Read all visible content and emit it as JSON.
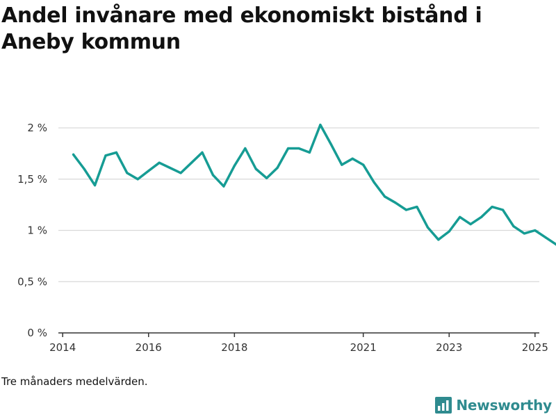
{
  "colors": {
    "line": "#169c94",
    "grid": "#d9d9d9",
    "axis": "#333333",
    "brand": "#2f8b8f"
  },
  "brand": {
    "name": "Newsworthy",
    "logo_icon": "newsworthy-logo-icon"
  },
  "chart_data": {
    "type": "line",
    "title": "Andel invånare med ekonomiskt bistånd i Aneby kommun",
    "note": "Tre månaders medelvärden.",
    "xlabel": "",
    "ylabel": "",
    "xlim": [
      2013.9,
      2025.1
    ],
    "ylim": [
      0,
      2.0
    ],
    "grid": true,
    "x_ticks": [
      {
        "value": 2014,
        "label": "2014"
      },
      {
        "value": 2016,
        "label": "2016"
      },
      {
        "value": 2018,
        "label": "2018"
      },
      {
        "value": 2021,
        "label": "2021"
      },
      {
        "value": 2023,
        "label": "2023"
      },
      {
        "value": 2025,
        "label": "2025"
      }
    ],
    "y_ticks": [
      {
        "value": 0,
        "label": "0 %"
      },
      {
        "value": 0.5,
        "label": "0,5 %"
      },
      {
        "value": 1.0,
        "label": "1 %"
      },
      {
        "value": 1.5,
        "label": "1,5 %"
      },
      {
        "value": 2.0,
        "label": "2 %"
      }
    ],
    "series": [
      {
        "name": "Andel invånare med ekonomiskt bistånd",
        "x": [
          2014.25,
          2014.5,
          2014.75,
          2015.0,
          2015.25,
          2015.5,
          2015.75,
          2016.0,
          2016.25,
          2016.5,
          2016.75,
          2017.0,
          2017.25,
          2017.5,
          2017.75,
          2018.0,
          2018.25,
          2018.5,
          2018.75,
          2019.0,
          2019.25,
          2019.5,
          2019.75,
          2020.0,
          2020.25,
          2020.5,
          2020.75,
          2021.0,
          2021.25,
          2021.5,
          2021.75,
          2022.0,
          2022.25,
          2022.5,
          2022.75,
          2023.0,
          2023.25,
          2023.5,
          2023.75,
          2024.0,
          2024.25,
          2024.5,
          2024.75,
          2025.0,
          2025.25,
          2025.5
        ],
        "values": [
          1.74,
          1.6,
          1.44,
          1.73,
          1.76,
          1.56,
          1.5,
          1.58,
          1.66,
          1.61,
          1.56,
          1.66,
          1.76,
          1.54,
          1.43,
          1.63,
          1.8,
          1.6,
          1.51,
          1.61,
          1.8,
          1.8,
          1.76,
          2.03,
          1.84,
          1.64,
          1.7,
          1.64,
          1.47,
          1.33,
          1.27,
          1.2,
          1.23,
          1.03,
          0.91,
          0.99,
          1.13,
          1.06,
          1.13,
          1.23,
          1.2,
          1.04,
          0.97,
          1.0,
          0.93,
          0.86
        ]
      }
    ]
  }
}
